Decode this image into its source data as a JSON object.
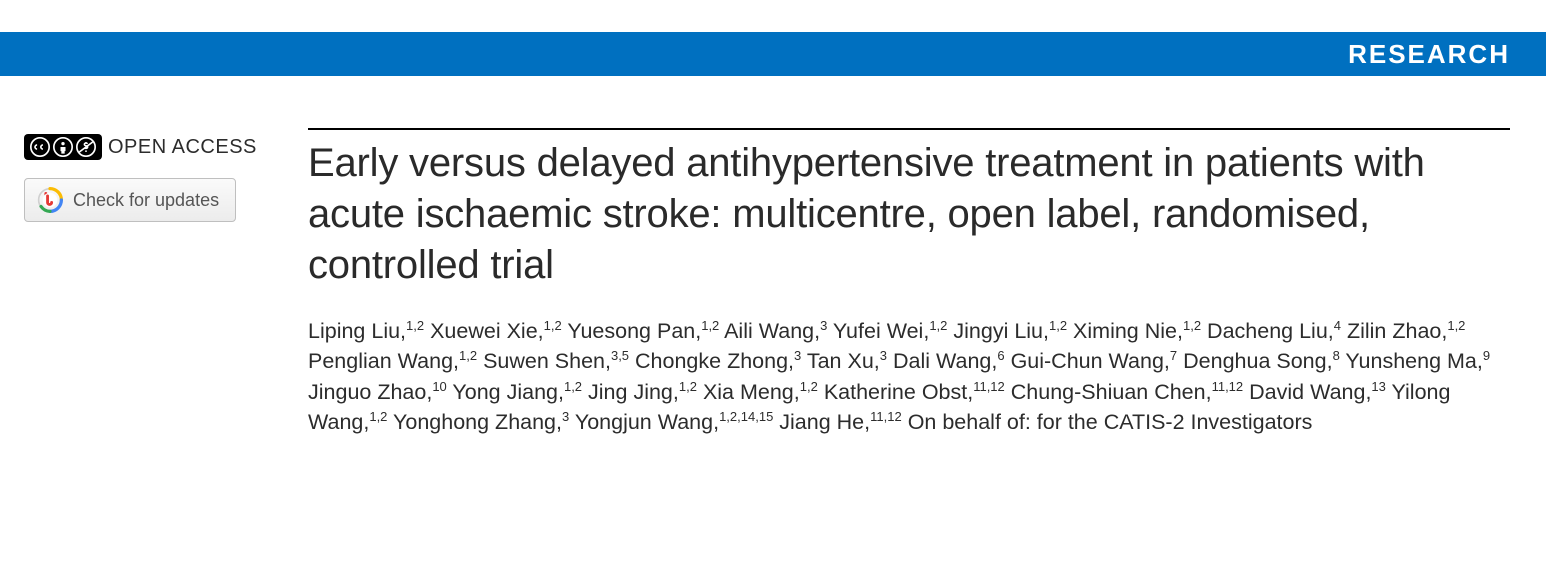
{
  "colors": {
    "header_bg": "#0070c0",
    "header_text": "#ffffff",
    "body_text": "#2c2c2c",
    "rule": "#000000",
    "button_border": "#bfbfbf",
    "button_text": "#555555"
  },
  "header": {
    "section_label": "RESEARCH"
  },
  "sidebar": {
    "open_access_label": "OPEN ACCESS",
    "updates_label": "Check for updates"
  },
  "article": {
    "title": "Early versus delayed antihypertensive treatment in patients with acute ischaemic stroke: multicentre, open label, randomised, controlled trial",
    "authors": [
      {
        "name": "Liping Liu",
        "affil": "1,2"
      },
      {
        "name": "Xuewei Xie",
        "affil": "1,2"
      },
      {
        "name": "Yuesong Pan",
        "affil": "1,2"
      },
      {
        "name": "Aili Wang",
        "affil": "3"
      },
      {
        "name": "Yufei Wei",
        "affil": "1,2"
      },
      {
        "name": "Jingyi Liu",
        "affil": "1,2"
      },
      {
        "name": "Ximing Nie",
        "affil": "1,2"
      },
      {
        "name": "Dacheng Liu",
        "affil": "4"
      },
      {
        "name": "Zilin Zhao",
        "affil": "1,2"
      },
      {
        "name": "Penglian Wang",
        "affil": "1,2"
      },
      {
        "name": "Suwen Shen",
        "affil": "3,5"
      },
      {
        "name": "Chongke Zhong",
        "affil": "3"
      },
      {
        "name": "Tan Xu",
        "affil": "3"
      },
      {
        "name": "Dali Wang",
        "affil": "6"
      },
      {
        "name": "Gui-Chun Wang",
        "affil": "7"
      },
      {
        "name": "Denghua Song",
        "affil": "8"
      },
      {
        "name": "Yunsheng Ma",
        "affil": "9"
      },
      {
        "name": "Jinguo Zhao",
        "affil": "10"
      },
      {
        "name": "Yong Jiang",
        "affil": "1,2"
      },
      {
        "name": "Jing Jing",
        "affil": "1,2"
      },
      {
        "name": "Xia Meng",
        "affil": "1,2"
      },
      {
        "name": "Katherine Obst",
        "affil": "11,12"
      },
      {
        "name": "Chung-Shiuan Chen",
        "affil": "11,12"
      },
      {
        "name": "David Wang",
        "affil": "13"
      },
      {
        "name": "Yilong Wang",
        "affil": "1,2"
      },
      {
        "name": "Yonghong Zhang",
        "affil": "3"
      },
      {
        "name": "Yongjun Wang",
        "affil": "1,2,14,15"
      },
      {
        "name": "Jiang He",
        "affil": "11,12"
      }
    ],
    "group_suffix": "On behalf of: for the CATIS-2 Investigators"
  }
}
